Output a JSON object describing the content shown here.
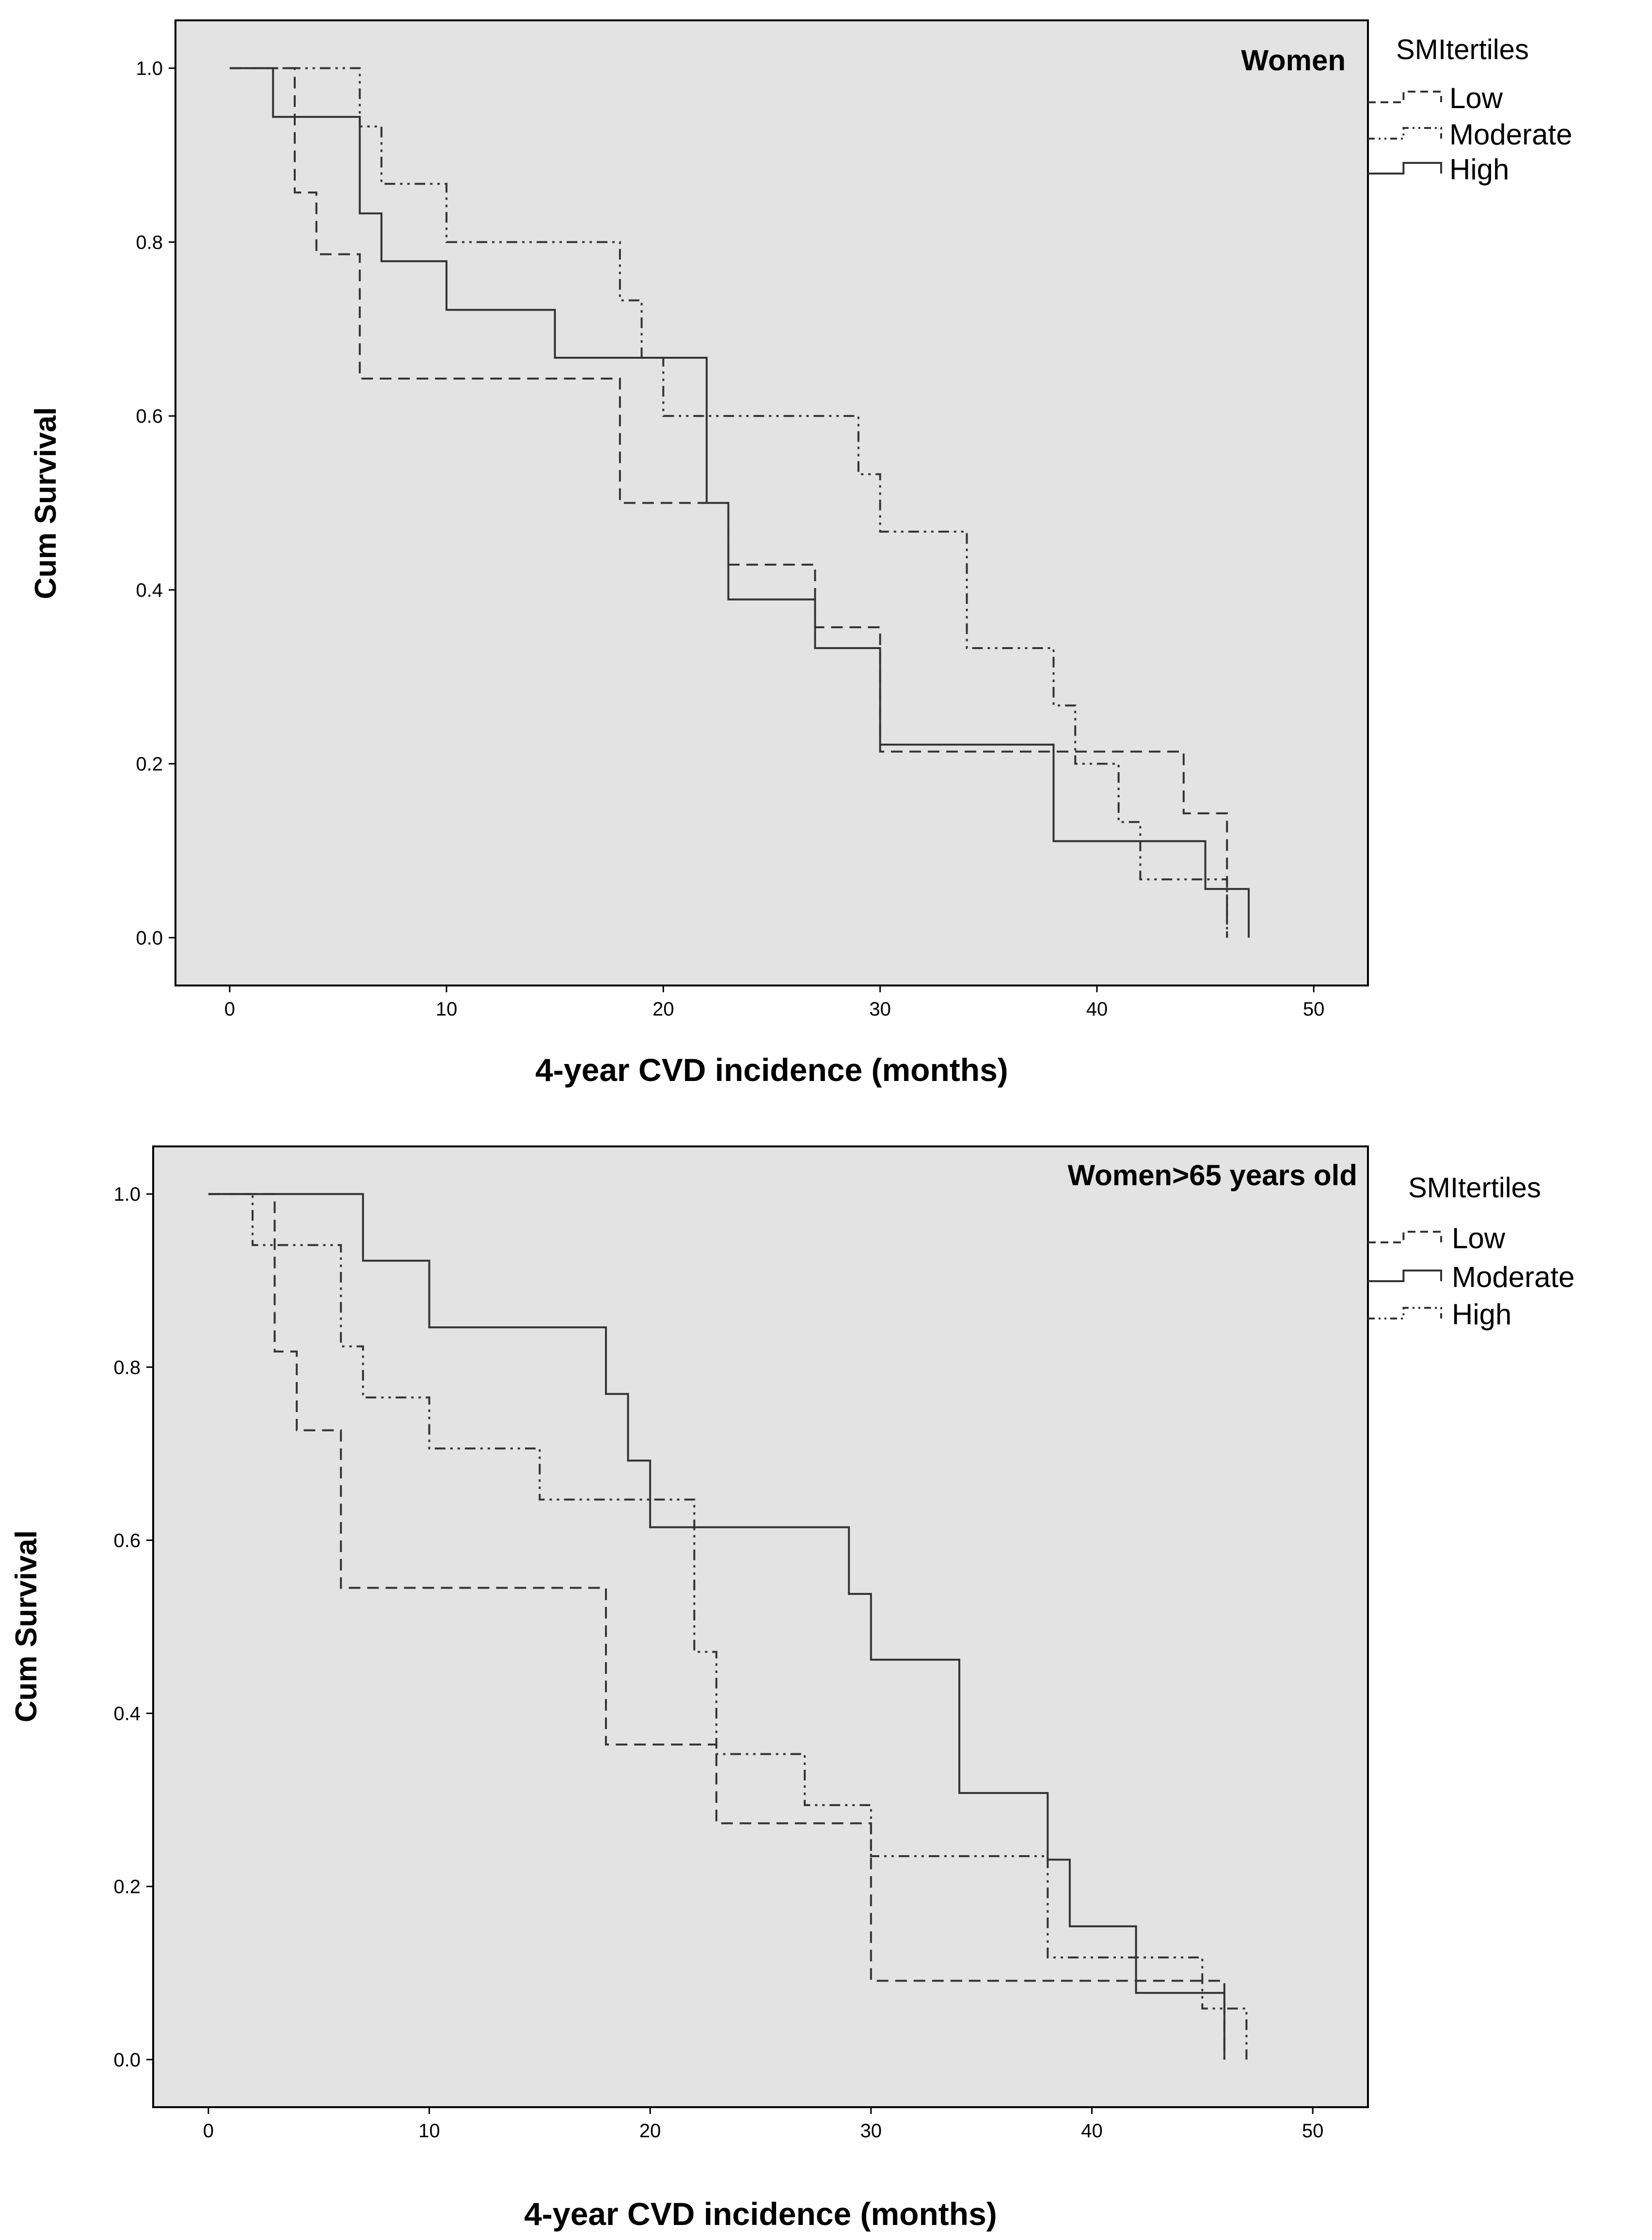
{
  "chart_data": [
    {
      "type": "line",
      "subtype": "kaplan-meier-step",
      "title": "Women",
      "xlabel": "4-year CVD incidence (months)",
      "ylabel": "Cum Survival",
      "xlim": [
        -2.5,
        52.5
      ],
      "ylim": [
        -0.055,
        1.055
      ],
      "xticks": [
        0,
        10,
        20,
        30,
        40,
        50
      ],
      "xtick_labels": [
        "0",
        "10",
        "20",
        "30",
        "40",
        "50"
      ],
      "yticks": [
        0.0,
        0.2,
        0.4,
        0.6,
        0.8,
        1.0
      ],
      "ytick_labels": [
        "0.0",
        "0.2",
        "0.4",
        "0.6",
        "0.8",
        "1.0"
      ],
      "legend_title": "SMItertiles",
      "legend_position": "right",
      "series": [
        {
          "name": "Low",
          "style": "dashed",
          "x": [
            0,
            3,
            4,
            6,
            18,
            23,
            27,
            30,
            44,
            46
          ],
          "y": [
            1.0,
            0.857,
            0.786,
            0.643,
            0.5,
            0.429,
            0.357,
            0.214,
            0.143,
            0.0
          ]
        },
        {
          "name": "Moderate",
          "style": "dashdotdot",
          "x": [
            0,
            6,
            7,
            10,
            18,
            19,
            20,
            29,
            30,
            34,
            38,
            39,
            41,
            42,
            46
          ],
          "y": [
            1.0,
            0.933,
            0.867,
            0.8,
            0.733,
            0.667,
            0.6,
            0.533,
            0.467,
            0.333,
            0.267,
            0.2,
            0.133,
            0.067,
            0.0
          ]
        },
        {
          "name": "High",
          "style": "solid",
          "x": [
            0,
            2,
            6,
            7,
            10,
            15,
            22,
            23,
            27,
            30,
            38,
            45,
            46,
            47
          ],
          "y": [
            1.0,
            0.944,
            0.833,
            0.778,
            0.722,
            0.667,
            0.5,
            0.389,
            0.333,
            0.222,
            0.111,
            0.056,
            0.056,
            0.0
          ]
        }
      ]
    },
    {
      "type": "line",
      "subtype": "kaplan-meier-step",
      "title": "Women>65 years old",
      "xlabel": "4-year CVD incidence (months)",
      "ylabel": "Cum Survival",
      "xlim": [
        -2.5,
        52.5
      ],
      "ylim": [
        -0.055,
        1.055
      ],
      "xticks": [
        0,
        10,
        20,
        30,
        40,
        50
      ],
      "xtick_labels": [
        "0",
        "10",
        "20",
        "30",
        "40",
        "50"
      ],
      "yticks": [
        0.0,
        0.2,
        0.4,
        0.6,
        0.8,
        1.0
      ],
      "ytick_labels": [
        "0.0",
        "0.2",
        "0.4",
        "0.6",
        "0.8",
        "1.0"
      ],
      "legend_title": "SMItertiles",
      "legend_position": "right",
      "series": [
        {
          "name": "Low",
          "style": "dashed",
          "x": [
            0,
            3,
            4,
            6,
            18,
            23,
            30,
            46
          ],
          "y": [
            1.0,
            0.818,
            0.727,
            0.545,
            0.364,
            0.273,
            0.091,
            0.0
          ]
        },
        {
          "name": "Moderate",
          "style": "solid",
          "x": [
            0,
            7,
            10,
            18,
            19,
            20,
            29,
            30,
            34,
            38,
            39,
            42,
            46
          ],
          "y": [
            1.0,
            0.923,
            0.846,
            0.769,
            0.692,
            0.615,
            0.538,
            0.462,
            0.308,
            0.231,
            0.154,
            0.077,
            0.0
          ]
        },
        {
          "name": "High",
          "style": "dashdotdot",
          "x": [
            0,
            2,
            6,
            7,
            10,
            15,
            22,
            23,
            27,
            30,
            38,
            45,
            47
          ],
          "y": [
            1.0,
            0.941,
            0.824,
            0.765,
            0.706,
            0.647,
            0.471,
            0.353,
            0.294,
            0.235,
            0.118,
            0.059,
            0.0
          ]
        }
      ]
    }
  ]
}
